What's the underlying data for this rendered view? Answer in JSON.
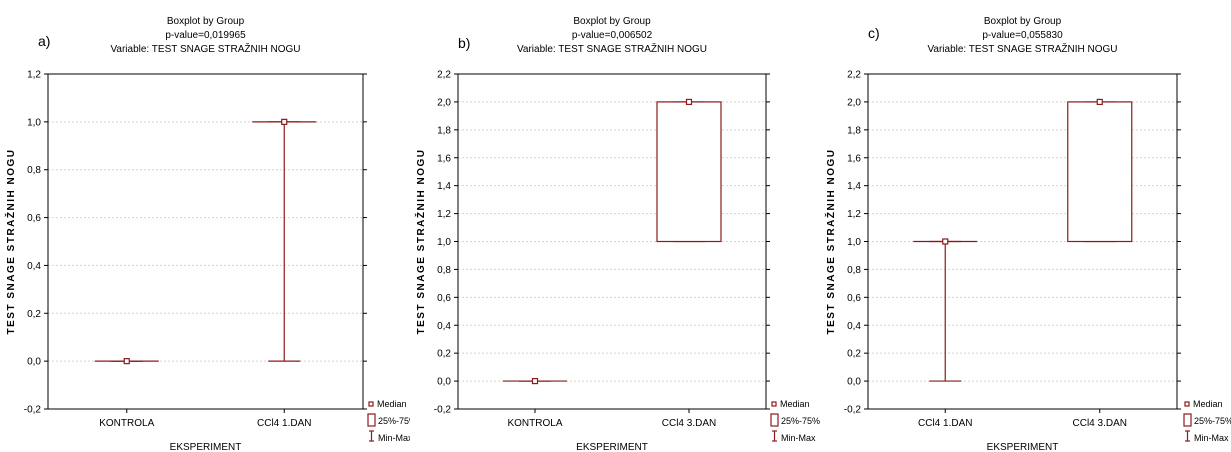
{
  "figure": {
    "colors": {
      "series": "#8b1a1a",
      "grid": "#d4d4d4",
      "axis": "#000000"
    },
    "legend": {
      "median": "Median",
      "box": "25%-75%",
      "range": "Min-Max"
    }
  },
  "chart_data": [
    {
      "type": "boxplot",
      "panel_label": "a)",
      "title": "Boxplot by Group",
      "subtitle_p": "p-value=0,019965",
      "subtitle_var": "Variable: TEST SNAGE STRAŽNIH NOGU",
      "xlabel": "EKSPERIMENT",
      "ylabel": "TEST SNAGE STRAŽNIH NOGU",
      "ylim": [
        -0.2,
        1.2
      ],
      "yticks": [
        "-0,2",
        "0,0",
        "0,2",
        "0,4",
        "0,6",
        "0,8",
        "1,0",
        "1,2"
      ],
      "yticks_val": [
        -0.2,
        0,
        0.2,
        0.4,
        0.6,
        0.8,
        1.0,
        1.2
      ],
      "grid": true,
      "legend_position": "bottom-right",
      "categories": [
        "KONTROLA",
        "CCl4 1.DAN"
      ],
      "median": [
        0.0,
        1.0
      ],
      "q1": [
        0.0,
        1.0
      ],
      "q3": [
        0.0,
        1.0
      ],
      "min": [
        0.0,
        0.0
      ],
      "max": [
        0.0,
        1.0
      ]
    },
    {
      "type": "boxplot",
      "panel_label": "b)",
      "title": "Boxplot by Group",
      "subtitle_p": "p-value=0,006502",
      "subtitle_var": "Variable: TEST SNAGE STRAŽNIH NOGU",
      "xlabel": "EKSPERIMENT",
      "ylabel": "TEST SNAGE STRAŽNIH NOGU",
      "ylim": [
        -0.2,
        2.2
      ],
      "yticks": [
        "-0,2",
        "0,0",
        "0,2",
        "0,4",
        "0,6",
        "0,8",
        "1,0",
        "1,2",
        "1,4",
        "1,6",
        "1,8",
        "2,0",
        "2,2"
      ],
      "yticks_val": [
        -0.2,
        0,
        0.2,
        0.4,
        0.6,
        0.8,
        1.0,
        1.2,
        1.4,
        1.6,
        1.8,
        2.0,
        2.2
      ],
      "grid": true,
      "legend_position": "bottom-right",
      "categories": [
        "KONTROLA",
        "CCl4 3.DAN"
      ],
      "median": [
        0.0,
        2.0
      ],
      "q1": [
        0.0,
        1.0
      ],
      "q3": [
        0.0,
        2.0
      ],
      "min": [
        0.0,
        1.0
      ],
      "max": [
        0.0,
        2.0
      ]
    },
    {
      "type": "boxplot",
      "panel_label": "c)",
      "title": "Boxplot by Group",
      "subtitle_p": "p-value=0,055830",
      "subtitle_var": "Variable: TEST SNAGE STRAŽNIH NOGU",
      "xlabel": "EKSPERIMENT",
      "ylabel": "TEST SNAGE STRAŽNIH NOGU",
      "ylim": [
        -0.2,
        2.2
      ],
      "yticks": [
        "-0,2",
        "0,0",
        "0,2",
        "0,4",
        "0,6",
        "0,8",
        "1,0",
        "1,2",
        "1,4",
        "1,6",
        "1,8",
        "2,0",
        "2,2"
      ],
      "yticks_val": [
        -0.2,
        0,
        0.2,
        0.4,
        0.6,
        0.8,
        1.0,
        1.2,
        1.4,
        1.6,
        1.8,
        2.0,
        2.2
      ],
      "grid": true,
      "legend_position": "bottom-right",
      "categories": [
        "CCl4 1.DAN",
        "CCl4 3.DAN"
      ],
      "median": [
        1.0,
        2.0
      ],
      "q1": [
        1.0,
        1.0
      ],
      "q3": [
        1.0,
        2.0
      ],
      "min": [
        0.0,
        1.0
      ],
      "max": [
        1.0,
        2.0
      ]
    }
  ]
}
